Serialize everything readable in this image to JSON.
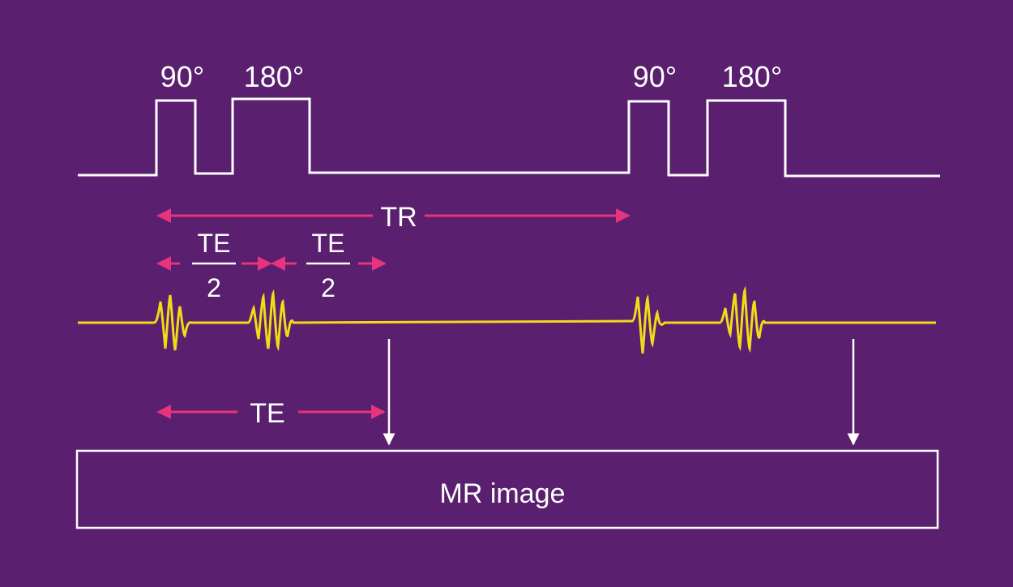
{
  "pulses": {
    "first_90": "90°",
    "first_180": "180°",
    "second_90": "90°",
    "second_180": "180°"
  },
  "timing": {
    "tr": "TR",
    "te": "TE",
    "te_half_1_num": "TE",
    "te_half_1_den": "2",
    "te_half_2_num": "TE",
    "te_half_2_den": "2"
  },
  "image_box": {
    "label": "MR image"
  },
  "colors": {
    "background": "#5a1f6e",
    "pulse_sequence": "#ffffff",
    "timing_arrows": "#e8337f",
    "signal": "#f2d91a"
  }
}
